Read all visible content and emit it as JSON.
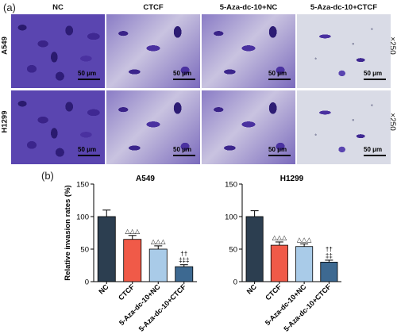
{
  "figure": {
    "panel_a_label": "(a)",
    "panel_b_label": "(b)",
    "columns": [
      "NC",
      "CTCF",
      "5-Aza-dc-10+NC",
      "5-Aza-dc-10+CTCF"
    ],
    "rows": [
      "A549",
      "H1299"
    ],
    "magnification": "×250",
    "scale_bar_label": "50 μm",
    "tile_density": [
      [
        "dense",
        "medium",
        "medium",
        "sparse"
      ],
      [
        "dense",
        "medium",
        "medium",
        "sparse"
      ]
    ]
  },
  "colors": {
    "NC": "#2c3e50",
    "CTCF": "#f05a48",
    "5-Aza-dc-10+NC": "#a9cbe8",
    "5-Aza-dc-10+CTCF": "#3d6991"
  },
  "chart_data": [
    {
      "type": "bar",
      "title": "A549",
      "ylabel": "Relative invasion rates (%)",
      "ylim": [
        0,
        150
      ],
      "yticks": [
        0,
        50,
        100,
        150
      ],
      "categories": [
        "NC",
        "CTCF",
        "5-Aza-dc-10+NC",
        "5-Aza-dc-10+CTCF"
      ],
      "values": [
        100,
        65,
        50,
        23
      ],
      "errors": [
        10,
        6,
        5,
        3
      ],
      "annotations": [
        [],
        [
          "△△△"
        ],
        [
          "△△△"
        ],
        [
          "††",
          "‡‡‡"
        ]
      ]
    },
    {
      "type": "bar",
      "title": "H1299",
      "ylabel": "",
      "ylim": [
        0,
        150
      ],
      "yticks": [
        0,
        50,
        100,
        150
      ],
      "categories": [
        "NC",
        "CTCF",
        "5-Aza-dc-10+NC",
        "5-Aza-dc-10+CTCF"
      ],
      "values": [
        100,
        56,
        54,
        30
      ],
      "errors": [
        9,
        5,
        4,
        3
      ],
      "annotations": [
        [],
        [
          "△△△"
        ],
        [
          "△△△"
        ],
        [
          "††",
          "‡‡"
        ]
      ]
    }
  ]
}
